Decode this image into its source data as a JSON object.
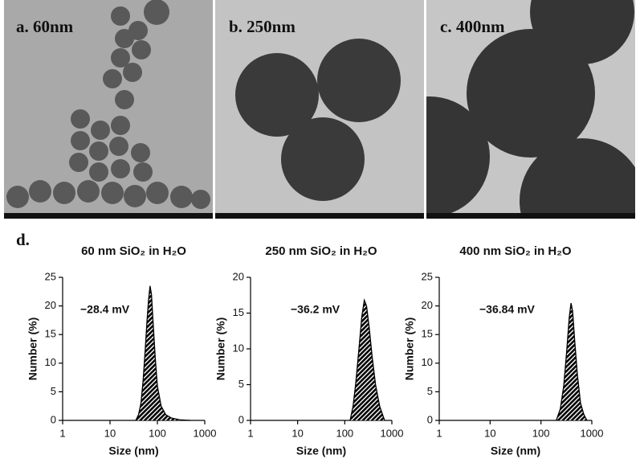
{
  "panels": [
    "a. 60nm",
    "b. 250nm",
    "c. 400nm"
  ],
  "panel_d": "d.",
  "chart_data": [
    {
      "type": "area",
      "title": "60 nm SiO₂ in H₂O",
      "annotation": "−28.4 mV",
      "x_label": "Size (nm)",
      "y_label": "Number (%)",
      "x": [
        35,
        40,
        45,
        50,
        55,
        60,
        65,
        70,
        75,
        80,
        90,
        100,
        120,
        150,
        200,
        300,
        500
      ],
      "values": [
        0,
        1,
        3,
        7,
        12,
        17,
        21,
        23.5,
        22,
        18,
        11,
        6,
        2.5,
        1,
        0.4,
        0.1,
        0
      ],
      "color": "#d42a2a",
      "log_x": true,
      "xlim": [
        1,
        1000
      ],
      "xticks": [
        1,
        10,
        100,
        1000
      ],
      "ylim": [
        0,
        25
      ],
      "yticks": [
        0,
        5,
        10,
        15,
        20,
        25
      ]
    },
    {
      "type": "area",
      "title": "250 nm SiO₂ in H₂O",
      "annotation": "−36.2 mV",
      "x_label": "Size (nm)",
      "y_label": "Number (%)",
      "x": [
        130,
        150,
        170,
        200,
        230,
        260,
        290,
        330,
        380,
        450,
        550,
        700
      ],
      "values": [
        0,
        2,
        5,
        10,
        14.5,
        16.8,
        16,
        13,
        9,
        5,
        2,
        0
      ],
      "color": "#d42a2a",
      "log_x": true,
      "xlim": [
        1,
        1000
      ],
      "xticks": [
        1,
        10,
        100,
        1000
      ],
      "ylim": [
        0,
        20
      ],
      "yticks": [
        0,
        5,
        10,
        15,
        20
      ]
    },
    {
      "type": "area",
      "title": "400 nm SiO₂ in H₂O",
      "annotation": "−36.84 mV",
      "x_label": "Size (nm)",
      "y_label": "Number (%)",
      "x": [
        200,
        240,
        280,
        320,
        360,
        390,
        420,
        460,
        520,
        600,
        700,
        800
      ],
      "values": [
        0,
        2,
        6,
        12,
        18,
        20.5,
        19,
        14,
        8,
        3,
        1,
        0
      ],
      "color": "#d42a2a",
      "log_x": true,
      "xlim": [
        1,
        1000
      ],
      "xticks": [
        1,
        10,
        100,
        1000
      ],
      "ylim": [
        0,
        25
      ],
      "yticks": [
        0,
        5,
        10,
        15,
        20,
        25
      ]
    }
  ]
}
